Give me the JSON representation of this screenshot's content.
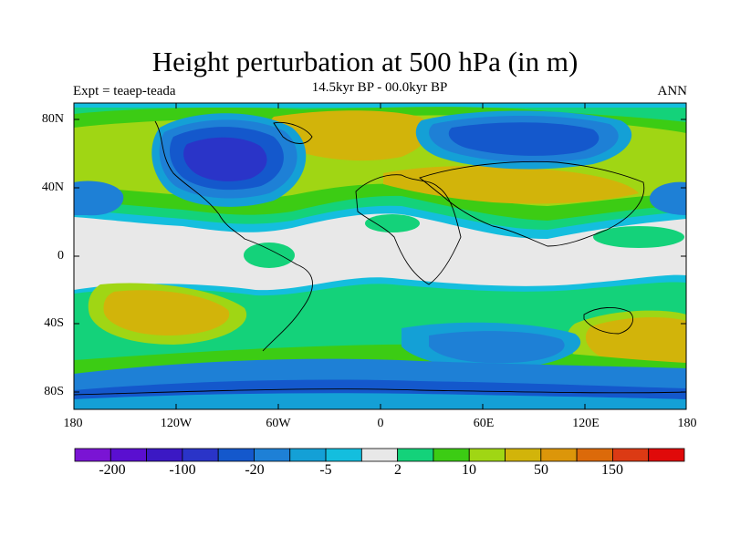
{
  "title": "Height perturbation at 500 hPa (in m)",
  "left_label": "Expt = teaep-teada",
  "center_label": "14.5kyr BP - 00.0kyr BP",
  "right_label": "ANN",
  "lat_labels": [
    "80N",
    "40N",
    "0",
    "40S",
    "80S"
  ],
  "lon_labels": [
    "180",
    "120W",
    "60W",
    "0",
    "60E",
    "120E",
    "180"
  ],
  "colorbar": {
    "colors": [
      "#7a14d4",
      "#5a0fd0",
      "#3b18c4",
      "#2a34c8",
      "#1458cc",
      "#1e80d6",
      "#14a0d6",
      "#14bede",
      "#e8e8e8",
      "#14d27a",
      "#3ccc14",
      "#a0d614",
      "#d2b40a",
      "#dc960a",
      "#dc6a0a",
      "#dc3a14",
      "#e00a0a"
    ],
    "tick_labels": [
      "-200",
      "-100",
      "-20",
      "-5",
      "2",
      "10",
      "50",
      "150"
    ]
  },
  "map_colors": {
    "neutral": "#e8e8e8",
    "deep_blue": "#2a34c8",
    "mid_blue": "#1458cc",
    "blue": "#1e80d6",
    "light_blue": "#14a0d6",
    "cyan": "#14bede",
    "teal_green": "#14d27a",
    "green": "#3ccc14",
    "yellow_green": "#a0d614",
    "gold": "#d2b40a",
    "orange": "#dc960a"
  }
}
